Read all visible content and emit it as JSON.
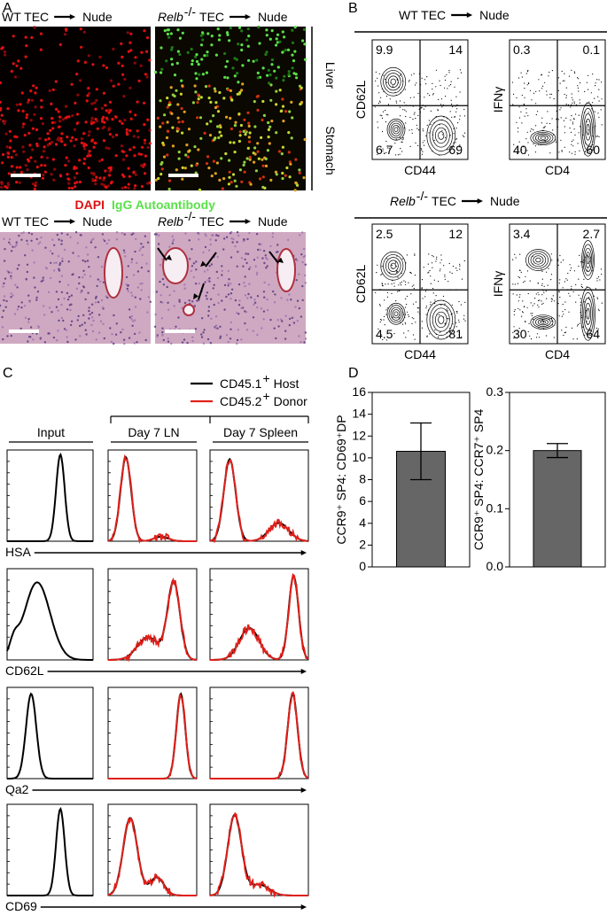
{
  "panel_a": {
    "label": "A",
    "top_titles": [
      {
        "pre": "WT TEC",
        "target": "Nude"
      },
      {
        "gene": "Relb",
        "sup": "-/-",
        "pre": "TEC",
        "target": "Nude"
      }
    ],
    "side_labels": [
      "Liver",
      "Stomach"
    ],
    "legend": [
      "DAPI",
      "IgG Autoantibody"
    ],
    "bottom_titles": [
      {
        "pre": "WT TEC",
        "target": "Nude"
      },
      {
        "gene": "Relb",
        "sup": "-/-",
        "pre": "TEC",
        "target": "Nude"
      }
    ]
  },
  "panel_b": {
    "label": "B",
    "groups": [
      {
        "title": {
          "pre": "WT TEC",
          "target": "Nude"
        },
        "plots": [
          {
            "y_label": "CD62L",
            "x_label": "CD44",
            "quadrants": [
              9.9,
              14,
              6.7,
              69
            ]
          },
          {
            "y_label": "IFNγ",
            "x_label": "CD4",
            "quadrants": [
              0.3,
              0.1,
              40,
              60
            ]
          }
        ]
      },
      {
        "title": {
          "gene": "Relb",
          "sup": "-/-",
          "pre": "TEC",
          "target": "Nude"
        },
        "plots": [
          {
            "y_label": "CD62L",
            "x_label": "CD44",
            "quadrants": [
              2.5,
              12,
              4.5,
              81
            ]
          },
          {
            "y_label": "IFNγ",
            "x_label": "CD4",
            "quadrants": [
              3.4,
              2.7,
              30,
              64
            ]
          }
        ]
      }
    ]
  },
  "panel_c": {
    "label": "C",
    "legend": [
      {
        "name": "CD45.1",
        "sup": "+",
        "rest": "Host",
        "color": "#000000"
      },
      {
        "name": "CD45.2",
        "sup": "+",
        "rest": "Donor",
        "color": "#e0201a"
      }
    ],
    "columns": [
      "Input",
      "Day 7 LN",
      "Day 7 Spleen"
    ],
    "rows": [
      "HSA",
      "CD62L",
      "Qa2",
      "CD69"
    ]
  },
  "panel_d": {
    "label": "D"
  },
  "chart_data": [
    {
      "type": "bar",
      "y_label": "CCR9⁺ SP4: CD69⁺DP",
      "values": [
        10.6
      ],
      "errors": [
        2.6
      ],
      "ylim": [
        0,
        16
      ],
      "yticks": [
        0,
        2,
        4,
        6,
        8,
        10,
        12,
        14,
        16
      ],
      "color": "#666666"
    },
    {
      "type": "bar",
      "y_label": "CCR9⁺ SP4: CCR7⁺ SP4",
      "values": [
        0.2
      ],
      "errors": [
        0.012
      ],
      "ylim": [
        0,
        0.3
      ],
      "yticks": [
        {
          "value": 0,
          "label": "0.0"
        },
        0.1,
        0.2,
        0.3
      ],
      "color": "#666666"
    }
  ]
}
